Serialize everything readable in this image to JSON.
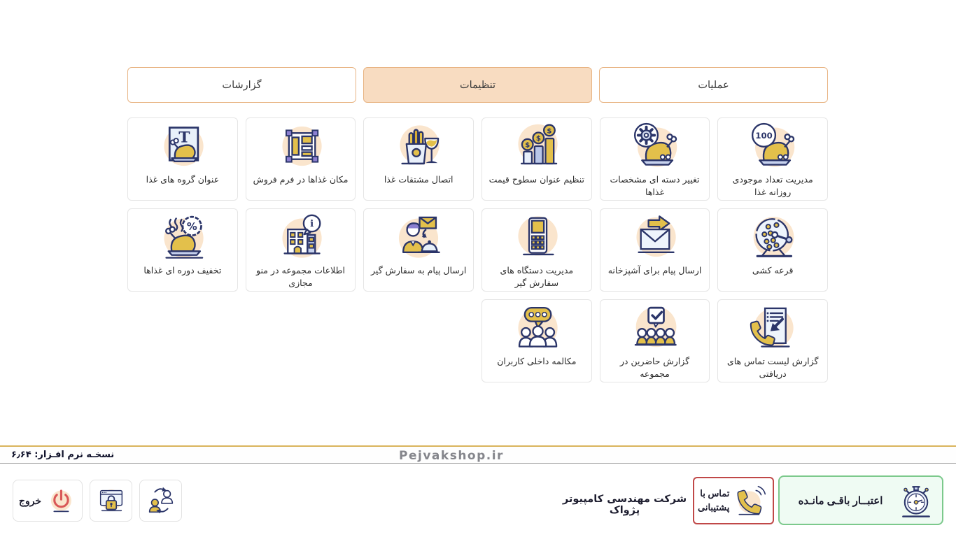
{
  "tabs": [
    {
      "label": "عملیات",
      "active": false
    },
    {
      "label": "تنظیمات",
      "active": true
    },
    {
      "label": "گزارشات",
      "active": false
    }
  ],
  "cards": [
    {
      "label": "مدیریت تعداد موجودی روزانه غذا",
      "icon": "turkey-count-icon"
    },
    {
      "label": "تغییر دسته ای مشخصات غذاها",
      "icon": "turkey-gear-icon"
    },
    {
      "label": "تنظیم عنوان سطوح قیمت",
      "icon": "price-levels-icon"
    },
    {
      "label": "اتصال مشتقات غذا",
      "icon": "fries-drink-icon"
    },
    {
      "label": "مکان غذاها در فرم فروش",
      "icon": "layout-grid-icon"
    },
    {
      "label": "عنوان گروه های غذا",
      "icon": "turkey-title-icon"
    },
    {
      "label": "قرعه کشی",
      "icon": "lottery-drum-icon"
    },
    {
      "label": "ارسال پیام برای آشپزخانه",
      "icon": "envelope-arrow-icon"
    },
    {
      "label": "مدیریت دستگاه های سفارش گیر",
      "icon": "pos-device-icon"
    },
    {
      "label": "ارسال پیام به سفارش گیر",
      "icon": "waiter-message-icon"
    },
    {
      "label": "اطلاعات مجموعه در منو مجازی",
      "icon": "building-info-icon"
    },
    {
      "label": "تخفیف دوره ای غذاها",
      "icon": "turkey-discount-icon"
    },
    {
      "label": "گزارش لیست تماس های دریافتی",
      "icon": "call-log-icon"
    },
    {
      "label": "گزارش حاضرین در مجموعه",
      "icon": "attendance-icon"
    },
    {
      "label": "مکالمه داخلی کاربران",
      "icon": "intercom-icon"
    }
  ],
  "footer": {
    "version_label": "نسخـه نرم افـزار: ۶٫۶۴",
    "website": "Pejvakshop.ir"
  },
  "bottom_bar": {
    "exit_label": "خروج",
    "company": "شرکت مهندسی کامپیوتر پژواک",
    "support_line1": "تماس با",
    "support_line2": "پشتیبانی",
    "credit_label": "اعتبــار باقـی مانـده"
  },
  "colors": {
    "tab_active_bg": "#f8dcc1",
    "tab_border": "#e8b483",
    "icon_navy": "#2b3569",
    "icon_yellow": "#e3c04b",
    "icon_peach": "#fae5cd",
    "credit_green_border": "#7cc98c",
    "credit_green_bg": "#effbf3",
    "support_red_border": "#c04848",
    "power_red": "#d95757",
    "footer_gold_line": "#d9b45c"
  }
}
